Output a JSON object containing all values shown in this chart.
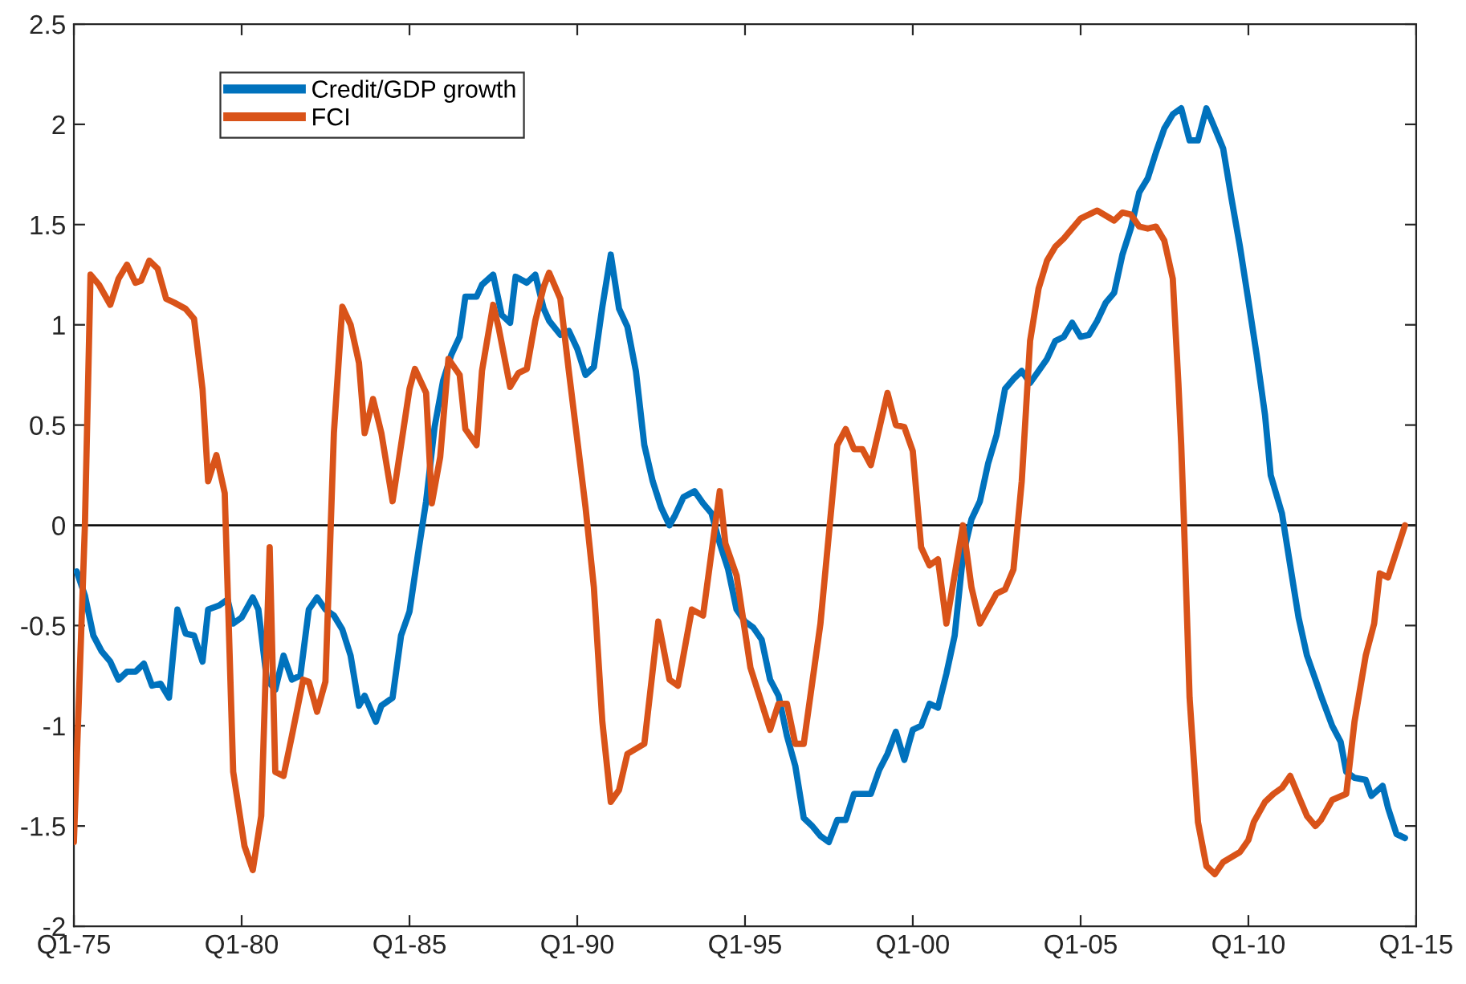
{
  "chart_data": {
    "type": "line",
    "xlim": [
      "1975-01",
      "2015-01"
    ],
    "ylim": [
      -2,
      2.5
    ],
    "xticks": [
      {
        "value": "1975-01",
        "label": "Q1-75"
      },
      {
        "value": "1980-01",
        "label": "Q1-80"
      },
      {
        "value": "1985-01",
        "label": "Q1-85"
      },
      {
        "value": "1990-01",
        "label": "Q1-90"
      },
      {
        "value": "1995-01",
        "label": "Q1-95"
      },
      {
        "value": "2000-01",
        "label": "Q1-00"
      },
      {
        "value": "2005-01",
        "label": "Q1-05"
      },
      {
        "value": "2010-01",
        "label": "Q1-10"
      },
      {
        "value": "2015-01",
        "label": "Q1-15"
      }
    ],
    "yticks": [
      -2,
      -1.5,
      -1,
      -0.5,
      0,
      0.5,
      1,
      1.5,
      2,
      2.5
    ],
    "grid": false,
    "legend": "top left",
    "marker": "none",
    "line_style": "solid",
    "ref_lines": [
      {
        "axis": "y",
        "value": 0,
        "color": "#000000"
      }
    ],
    "series": [
      {
        "name": "Credit/GDP growth",
        "color": "#0072bd",
        "x": [
          "1975-02",
          "1975-05",
          "1975-08",
          "1975-11",
          "1976-02",
          "1976-05",
          "1976-08",
          "1976-11",
          "1977-02",
          "1977-05",
          "1977-08",
          "1977-11",
          "1978-02",
          "1978-05",
          "1978-08",
          "1978-11",
          "1979-01",
          "1979-05",
          "1979-08",
          "1979-10",
          "1980-01",
          "1980-05",
          "1980-07",
          "1980-10",
          "1981-01",
          "1981-04",
          "1981-07",
          "1981-10",
          "1982-01",
          "1982-04",
          "1982-07",
          "1982-10",
          "1983-01",
          "1983-04",
          "1983-07",
          "1983-09",
          "1984-01",
          "1984-03",
          "1984-07",
          "1984-10",
          "1985-01",
          "1985-04",
          "1985-07",
          "1985-10",
          "1986-01",
          "1986-04",
          "1986-07",
          "1986-09",
          "1987-01",
          "1987-03",
          "1987-07",
          "1987-10",
          "1988-01",
          "1988-03",
          "1988-07",
          "1988-10",
          "1989-01",
          "1989-03",
          "1989-07",
          "1989-10",
          "1990-01",
          "1990-04",
          "1990-07",
          "1990-10",
          "1991-01",
          "1991-04",
          "1991-07",
          "1991-10",
          "1992-01",
          "1992-04",
          "1992-07",
          "1992-10",
          "1992-12",
          "1993-03",
          "1993-07",
          "1993-10",
          "1994-01",
          "1994-04",
          "1994-07",
          "1994-10",
          "1995-01",
          "1995-04",
          "1995-07",
          "1995-10",
          "1996-01",
          "1996-04",
          "1996-07",
          "1996-10",
          "1997-01",
          "1997-04",
          "1997-07",
          "1997-10",
          "1998-01",
          "1998-04",
          "1998-10",
          "1999-01",
          "1999-04",
          "1999-07",
          "1999-10",
          "2000-01",
          "2000-04",
          "2000-07",
          "2000-10",
          "2001-01",
          "2001-04",
          "2001-07",
          "2001-10",
          "2002-01",
          "2002-04",
          "2002-07",
          "2002-10",
          "2003-01",
          "2003-04",
          "2003-07",
          "2003-10",
          "2004-01",
          "2004-04",
          "2004-07",
          "2004-10",
          "2005-01",
          "2005-04",
          "2005-07",
          "2005-10",
          "2006-01",
          "2006-04",
          "2006-07",
          "2006-10",
          "2007-01",
          "2007-04",
          "2007-07",
          "2007-10",
          "2008-01",
          "2008-04",
          "2008-07",
          "2008-10",
          "2009-01",
          "2009-04",
          "2009-07",
          "2009-10",
          "2010-01",
          "2010-04",
          "2010-07",
          "2010-09",
          "2011-01",
          "2011-04",
          "2011-07",
          "2011-10",
          "2012-01",
          "2012-03",
          "2012-07",
          "2012-10",
          "2012-12",
          "2013-03",
          "2013-07",
          "2013-09",
          "2014-01",
          "2014-03",
          "2014-06",
          "2014-09"
        ],
        "values": [
          -0.23,
          -0.35,
          -0.55,
          -0.63,
          -0.68,
          -0.77,
          -0.73,
          -0.73,
          -0.69,
          -0.8,
          -0.79,
          -0.86,
          -0.42,
          -0.54,
          -0.55,
          -0.68,
          -0.42,
          -0.4,
          -0.37,
          -0.49,
          -0.46,
          -0.36,
          -0.42,
          -0.77,
          -0.82,
          -0.65,
          -0.77,
          -0.75,
          -0.42,
          -0.36,
          -0.42,
          -0.45,
          -0.52,
          -0.65,
          -0.9,
          -0.85,
          -0.98,
          -0.9,
          -0.86,
          -0.55,
          -0.43,
          -0.15,
          0.12,
          0.49,
          0.72,
          0.85,
          0.94,
          1.14,
          1.14,
          1.2,
          1.25,
          1.05,
          1.01,
          1.24,
          1.21,
          1.25,
          1.08,
          1.02,
          0.95,
          0.97,
          0.88,
          0.75,
          0.79,
          1.09,
          1.35,
          1.08,
          0.99,
          0.77,
          0.4,
          0.22,
          0.09,
          0,
          0.05,
          0.14,
          0.17,
          0.11,
          0.06,
          -0.09,
          -0.22,
          -0.42,
          -0.48,
          -0.51,
          -0.57,
          -0.77,
          -0.85,
          -1.05,
          -1.2,
          -1.46,
          -1.5,
          -1.55,
          -1.58,
          -1.47,
          -1.47,
          -1.34,
          -1.34,
          -1.22,
          -1.14,
          -1.03,
          -1.17,
          -1.02,
          -1.0,
          -0.89,
          -0.91,
          -0.74,
          -0.55,
          -0.15,
          0.03,
          0.12,
          0.31,
          0.45,
          0.68,
          0.73,
          0.77,
          0.71,
          0.77,
          0.83,
          0.92,
          0.94,
          1.01,
          0.94,
          0.95,
          1.02,
          1.11,
          1.16,
          1.35,
          1.48,
          1.66,
          1.73,
          1.86,
          1.98,
          2.05,
          2.08,
          1.92,
          1.92,
          2.08,
          1.98,
          1.88,
          1.63,
          1.39,
          1.12,
          0.85,
          0.55,
          0.25,
          0.06,
          -0.2,
          -0.46,
          -0.65,
          -0.77,
          -0.85,
          -1.0,
          -1.08,
          -1.23,
          -1.26,
          -1.27,
          -1.35,
          -1.3,
          -1.41,
          -1.54,
          -1.56
        ]
      },
      {
        "name": "FCI",
        "color": "#d95319",
        "x": [
          "1975-01",
          "1975-05",
          "1975-07",
          "1975-10",
          "1976-02",
          "1976-05",
          "1976-08",
          "1976-11",
          "1977-01",
          "1977-04",
          "1977-07",
          "1977-10",
          "1978-01",
          "1978-05",
          "1978-08",
          "1978-11",
          "1979-01",
          "1979-04",
          "1979-07",
          "1979-10",
          "1980-02",
          "1980-05",
          "1980-08",
          "1980-11",
          "1981-01",
          "1981-04",
          "1981-07",
          "1981-11",
          "1982-01",
          "1982-04",
          "1982-07",
          "1982-10",
          "1983-01",
          "1983-04",
          "1983-07",
          "1983-09",
          "1983-12",
          "1984-03",
          "1984-07",
          "1985-01",
          "1985-03",
          "1985-07",
          "1985-09",
          "1985-12",
          "1986-03",
          "1986-07",
          "1986-09",
          "1987-01",
          "1987-03",
          "1987-07",
          "1987-09",
          "1988-01",
          "1988-04",
          "1988-07",
          "1988-10",
          "1989-01",
          "1989-03",
          "1989-07",
          "1989-10",
          "1990-04",
          "1990-07",
          "1990-10",
          "1991-01",
          "1991-04",
          "1991-07",
          "1992-01",
          "1992-06",
          "1992-10",
          "1993-01",
          "1993-06",
          "1993-10",
          "1994-04",
          "1994-06",
          "1994-10",
          "1995-03",
          "1995-10",
          "1996-01",
          "1996-04",
          "1996-07",
          "1996-10",
          "1997-04",
          "1997-10",
          "1998-01",
          "1998-04",
          "1998-07",
          "1998-10",
          "1999-04",
          "1999-07",
          "1999-10",
          "2000-01",
          "2000-04",
          "2000-07",
          "2000-10",
          "2001-01",
          "2001-07",
          "2001-10",
          "2002-01",
          "2002-07",
          "2002-10",
          "2003-01",
          "2003-04",
          "2003-07",
          "2003-10",
          "2004-01",
          "2004-04",
          "2004-07",
          "2004-10",
          "2005-01",
          "2005-07",
          "2006-01",
          "2006-04",
          "2006-07",
          "2006-10",
          "2007-01",
          "2007-04",
          "2007-07",
          "2007-10",
          "2007-12",
          "2008-01",
          "2008-02",
          "2008-04",
          "2008-07",
          "2008-10",
          "2009-01",
          "2009-04",
          "2009-10",
          "2010-01",
          "2010-03",
          "2010-07",
          "2010-10",
          "2011-01",
          "2011-04",
          "2011-07",
          "2011-10",
          "2012-01",
          "2012-03",
          "2012-07",
          "2012-12",
          "2013-03",
          "2013-07",
          "2013-10",
          "2013-12",
          "2014-03",
          "2014-09"
        ],
        "values": [
          -1.58,
          0,
          1.25,
          1.2,
          1.1,
          1.23,
          1.3,
          1.21,
          1.22,
          1.32,
          1.28,
          1.13,
          1.11,
          1.08,
          1.03,
          0.68,
          0.22,
          0.35,
          0.16,
          -1.23,
          -1.6,
          -1.72,
          -1.45,
          -0.11,
          -1.23,
          -1.25,
          -1.05,
          -0.77,
          -0.78,
          -0.93,
          -0.78,
          0.46,
          1.09,
          1.0,
          0.81,
          0.46,
          0.63,
          0.46,
          0.12,
          0.68,
          0.78,
          0.66,
          0.11,
          0.34,
          0.83,
          0.75,
          0.48,
          0.4,
          0.77,
          1.1,
          0.98,
          0.69,
          0.76,
          0.78,
          1.02,
          1.19,
          1.26,
          1.13,
          0.77,
          0.09,
          -0.31,
          -0.98,
          -1.38,
          -1.32,
          -1.14,
          -1.09,
          -0.48,
          -0.77,
          -0.8,
          -0.42,
          -0.45,
          0.17,
          -0.09,
          -0.25,
          -0.71,
          -1.02,
          -0.89,
          -0.89,
          -1.09,
          -1.09,
          -0.49,
          0.4,
          0.48,
          0.38,
          0.38,
          0.3,
          0.66,
          0.5,
          0.49,
          0.37,
          -0.11,
          -0.2,
          -0.17,
          -0.49,
          0,
          -0.31,
          -0.49,
          -0.34,
          -0.32,
          -0.22,
          0.22,
          0.92,
          1.18,
          1.32,
          1.39,
          1.43,
          1.48,
          1.53,
          1.57,
          1.52,
          1.56,
          1.55,
          1.49,
          1.48,
          1.49,
          1.42,
          1.23,
          0.71,
          0.4,
          0,
          -0.86,
          -1.48,
          -1.7,
          -1.74,
          -1.68,
          -1.63,
          -1.57,
          -1.48,
          -1.38,
          -1.34,
          -1.31,
          -1.25,
          -1.35,
          -1.45,
          -1.5,
          -1.47,
          -1.37,
          -1.34,
          -0.98,
          -0.65,
          -0.49,
          -0.24,
          -0.26,
          0
        ]
      }
    ]
  }
}
